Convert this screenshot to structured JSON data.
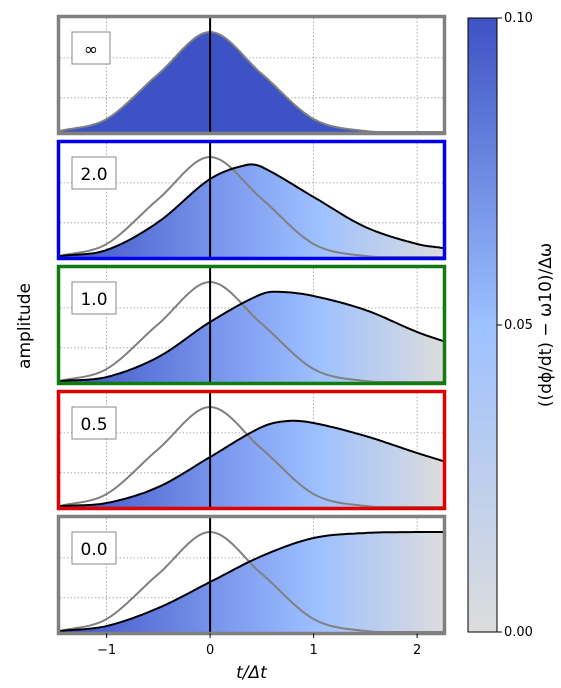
{
  "chart_data": {
    "type": "area",
    "xlabel": "t/Δt",
    "ylabel": "amplitude",
    "xlim": [
      -1.45,
      2.25
    ],
    "xticks": [
      -1,
      0,
      1,
      2
    ],
    "xtick_labels": [
      "−1",
      "0",
      "1",
      "2"
    ],
    "grid": true,
    "reference_curve": {
      "description": "gaussian envelope",
      "x": [
        -1.45,
        -1.0,
        -0.5,
        0.0,
        0.5,
        1.0,
        1.5,
        2.0,
        2.25
      ],
      "y": [
        0.01,
        0.13,
        0.58,
        1.0,
        0.58,
        0.13,
        0.01,
        0.0,
        0.0
      ]
    },
    "panels": [
      {
        "label": "∞",
        "border_color": "#808080",
        "fill": "solid",
        "x": [
          -1.45,
          -1.0,
          -0.5,
          0.0,
          0.5,
          1.0,
          1.5,
          2.0,
          2.25
        ],
        "y": [
          0.01,
          0.13,
          0.58,
          1.0,
          0.58,
          0.13,
          0.01,
          0.0,
          0.0
        ]
      },
      {
        "label": "2.0",
        "border_color": "#0000ee",
        "fill": "gradient",
        "x": [
          -1.45,
          -1.0,
          -0.5,
          0.0,
          0.35,
          0.5,
          1.0,
          1.5,
          2.0,
          2.25
        ],
        "y": [
          0.01,
          0.07,
          0.35,
          0.78,
          0.92,
          0.9,
          0.6,
          0.3,
          0.13,
          0.09
        ]
      },
      {
        "label": "1.0",
        "border_color": "#117a11",
        "fill": "gradient",
        "x": [
          -1.45,
          -1.0,
          -0.5,
          0.0,
          0.5,
          0.7,
          1.0,
          1.5,
          2.0,
          2.25
        ],
        "y": [
          0.01,
          0.05,
          0.25,
          0.6,
          0.88,
          0.9,
          0.86,
          0.72,
          0.5,
          0.41
        ]
      },
      {
        "label": "0.5",
        "border_color": "#e00000",
        "fill": "gradient",
        "x": [
          -1.45,
          -1.0,
          -0.5,
          0.0,
          0.5,
          0.75,
          1.0,
          1.5,
          2.0,
          2.25
        ],
        "y": [
          0.01,
          0.04,
          0.2,
          0.5,
          0.8,
          0.86,
          0.84,
          0.71,
          0.54,
          0.46
        ]
      },
      {
        "label": "0.0",
        "border_color": "#808080",
        "fill": "gradient",
        "x": [
          -1.45,
          -1.0,
          -0.5,
          0.0,
          0.5,
          1.0,
          1.5,
          2.0,
          2.25
        ],
        "y": [
          0.01,
          0.06,
          0.24,
          0.5,
          0.76,
          0.94,
          0.99,
          1.0,
          1.0
        ]
      }
    ],
    "colorbar": {
      "label": "((dϕ/dt) − ω10)/Δω",
      "ticks": [
        0.0,
        0.05,
        0.1
      ],
      "tick_labels": [
        "0.00",
        "0.05",
        "0.10"
      ],
      "colors": [
        "#dcdcdc",
        "#9ec1ff",
        "#3d52c4"
      ]
    }
  }
}
